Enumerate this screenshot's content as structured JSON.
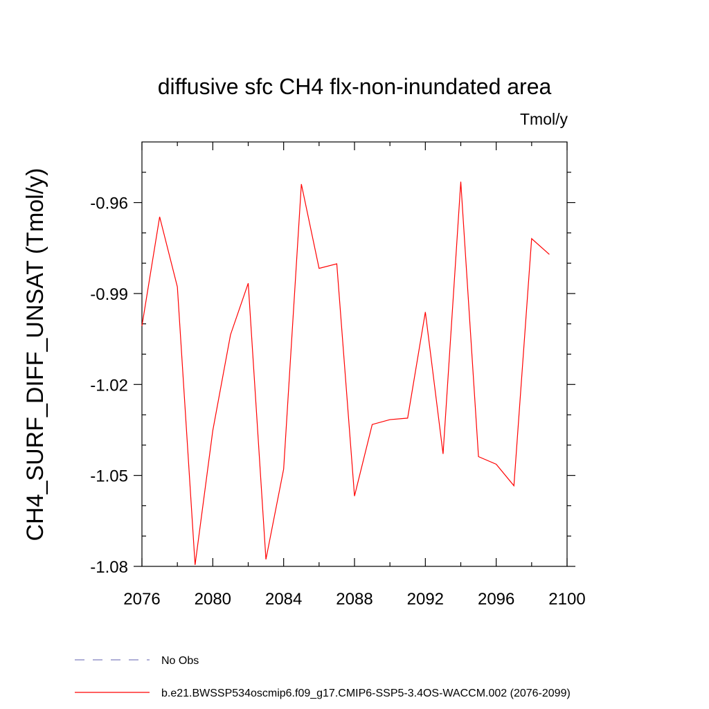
{
  "chart_data": {
    "type": "line",
    "title": "diffusive sfc CH4 flx-non-inundated area",
    "units_label": "Tmol/y",
    "xlabel": "",
    "ylabel": "CH4_SURF_DIFF_UNSAT  (Tmol/y)",
    "xlim": [
      2076,
      2100
    ],
    "ylim": [
      -1.08,
      -0.94
    ],
    "x_ticks": [
      2076,
      2080,
      2084,
      2088,
      2092,
      2096,
      2100
    ],
    "x_tick_labels": [
      "2076",
      "2080",
      "2084",
      "2088",
      "2092",
      "2096",
      "2100"
    ],
    "y_ticks": [
      -1.08,
      -1.05,
      -1.02,
      -0.99,
      -0.96
    ],
    "y_tick_labels": [
      "-1.08",
      "-1.05",
      "-1.02",
      "-0.99",
      "-0.96"
    ],
    "grid": false,
    "legend_position": "bottom-left",
    "series": [
      {
        "name": "b.e21.BWSSP534oscmip6.f09_g17.CMIP6-SSP5-3.4OS-WACCM.002 (2076-2099)",
        "color": "#ff0000",
        "style": "solid",
        "x": [
          2076,
          2077,
          2078,
          2079,
          2080,
          2081,
          2082,
          2083,
          2084,
          2085,
          2086,
          2087,
          2088,
          2089,
          2090,
          2091,
          2092,
          2093,
          2094,
          2095,
          2096,
          2097,
          2098,
          2099
        ],
        "y": [
          -1.0007,
          -0.9647,
          -0.9878,
          -1.0795,
          -1.0352,
          -1.0036,
          -0.9866,
          -1.0777,
          -1.0479,
          -0.9539,
          -0.9817,
          -0.9802,
          -1.0568,
          -1.0332,
          -1.0316,
          -1.0311,
          -0.9961,
          -1.0429,
          -0.9531,
          -1.0438,
          -1.0463,
          -1.0534,
          -0.9719,
          -0.9771
        ]
      }
    ],
    "legend": [
      {
        "label": "No Obs",
        "color": "#7f7fbf",
        "style": "dashed"
      },
      {
        "label": "b.e21.BWSSP534oscmip6.f09_g17.CMIP6-SSP5-3.4OS-WACCM.002 (2076-2099)",
        "color": "#ff0000",
        "style": "solid"
      }
    ]
  }
}
